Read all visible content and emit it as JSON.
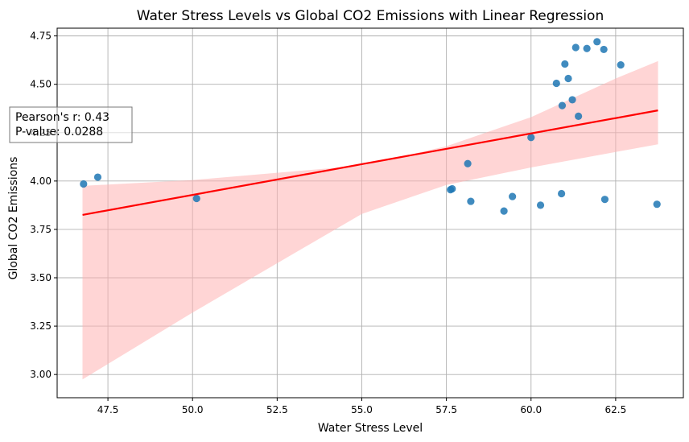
{
  "chart_data": {
    "type": "scatter",
    "title": "Water Stress Levels vs Global CO2 Emissions with Linear Regression",
    "xlabel": "Water Stress Level",
    "ylabel": "Global CO2 Emissions",
    "xlim": [
      46.0,
      64.5
    ],
    "ylim": [
      2.88,
      4.79
    ],
    "xticks": [
      47.5,
      50.0,
      52.5,
      55.0,
      57.5,
      60.0,
      62.5
    ],
    "xtick_labels": [
      "47.5",
      "50.0",
      "52.5",
      "55.0",
      "57.5",
      "60.0",
      "62.5"
    ],
    "yticks": [
      3.0,
      3.25,
      3.5,
      3.75,
      4.0,
      4.25,
      4.5,
      4.75
    ],
    "ytick_labels": [
      "3.00",
      "3.25",
      "3.50",
      "3.75",
      "4.00",
      "4.25",
      "4.50",
      "4.75"
    ],
    "grid": true,
    "colors": {
      "points": "#1f77b4",
      "regression_line": "#ff0000",
      "confidence_band": "#ffb3b3",
      "grid": "#b0b0b0"
    },
    "points": {
      "x": [
        46.78,
        47.2,
        50.12,
        57.62,
        57.67,
        58.13,
        58.22,
        59.2,
        59.45,
        60.0,
        60.28,
        60.75,
        60.9,
        60.92,
        61.0,
        61.1,
        61.22,
        61.32,
        61.4,
        61.65,
        61.95,
        62.15,
        62.18,
        62.65,
        63.72
      ],
      "y": [
        3.985,
        4.02,
        3.91,
        3.955,
        3.96,
        4.09,
        3.895,
        3.845,
        3.92,
        4.225,
        3.875,
        4.505,
        3.935,
        4.39,
        4.605,
        4.53,
        4.42,
        4.69,
        4.335,
        4.685,
        4.72,
        4.68,
        3.905,
        4.6,
        3.88
      ]
    },
    "regression": {
      "x": [
        46.75,
        63.75
      ],
      "y": [
        3.825,
        4.365
      ]
    },
    "confidence_band": {
      "x": [
        46.75,
        50.0,
        55.0,
        57.5,
        60.0,
        62.5,
        63.75
      ],
      "lower": [
        2.975,
        3.32,
        3.83,
        3.98,
        4.07,
        4.15,
        4.19
      ],
      "upper": [
        3.975,
        4.005,
        4.08,
        4.18,
        4.33,
        4.53,
        4.62
      ]
    },
    "annotation": {
      "line1": "Pearson's r: 0.43",
      "line2": "P-value: 0.0288"
    }
  }
}
